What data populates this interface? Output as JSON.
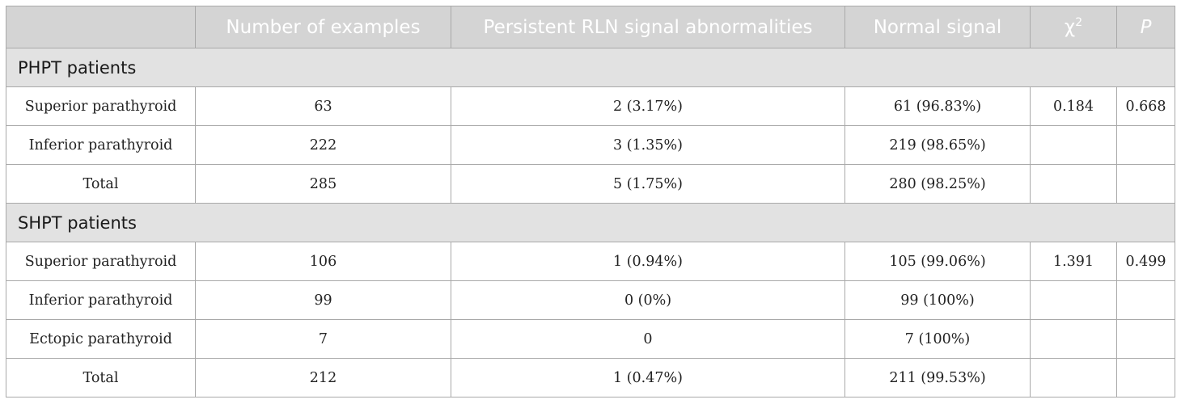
{
  "table": {
    "headers": {
      "group": "",
      "number_of_examples": "Number of examples",
      "abnormal": "Persistent RLN signal abnormalities",
      "normal": "Normal signal",
      "chi_base": "χ",
      "chi_sup": "2",
      "p": "P"
    },
    "sections": [
      {
        "title": "PHPT patients",
        "rows": [
          {
            "location": "Superior parathyroid",
            "n": "63",
            "abnormal": "2 (3.17%)",
            "normal": "61 (96.83%)",
            "chi2": "0.184",
            "p": "0.668"
          },
          {
            "location": "Inferior parathyroid",
            "n": "222",
            "abnormal": "3 (1.35%)",
            "normal": "219 (98.65%)",
            "chi2": "",
            "p": ""
          },
          {
            "location": "Total",
            "n": "285",
            "abnormal": "5 (1.75%)",
            "normal": "280 (98.25%)",
            "chi2": "",
            "p": ""
          }
        ]
      },
      {
        "title": "SHPT patients",
        "rows": [
          {
            "location": "Superior parathyroid",
            "n": "106",
            "abnormal": "1 (0.94%)",
            "normal": "105 (99.06%)",
            "chi2": "1.391",
            "p": "0.499"
          },
          {
            "location": "Inferior parathyroid",
            "n": "99",
            "abnormal": "0 (0%)",
            "normal": "99 (100%)",
            "chi2": "",
            "p": ""
          },
          {
            "location": "Ectopic parathyroid",
            "n": "7",
            "abnormal": "0",
            "normal": "7 (100%)",
            "chi2": "",
            "p": ""
          },
          {
            "location": "Total",
            "n": "212",
            "abnormal": "1 (0.47%)",
            "normal": "211 (99.53%)",
            "chi2": "",
            "p": ""
          }
        ]
      }
    ]
  }
}
